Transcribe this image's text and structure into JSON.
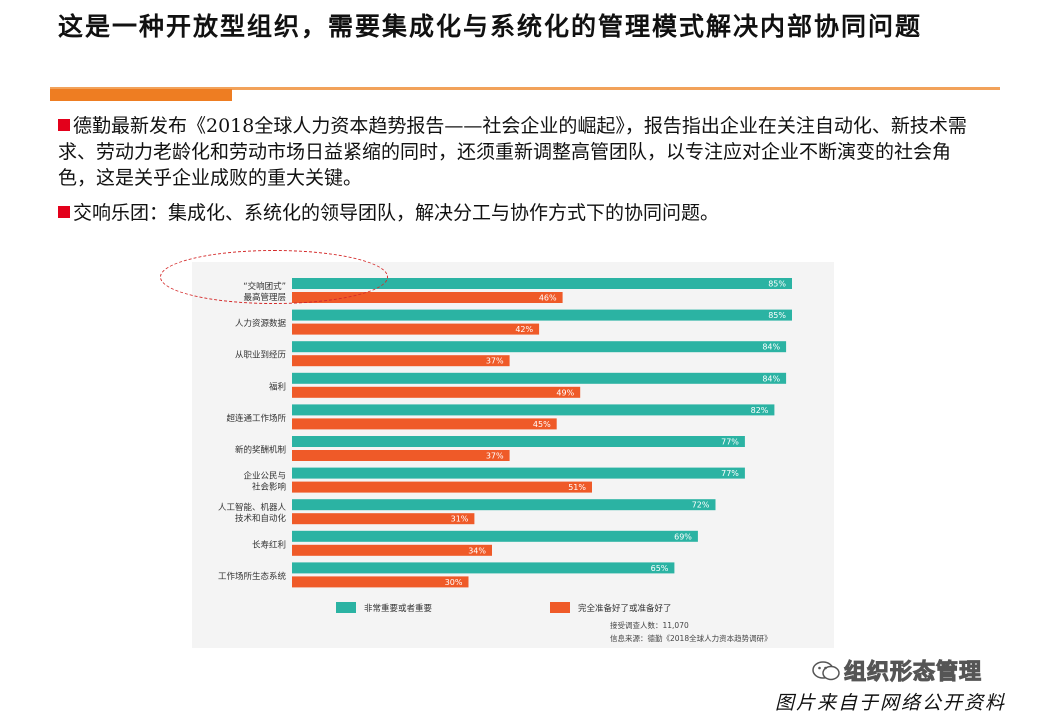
{
  "slide": {
    "title": "这是一种开放型组织，需要集成化与系统化的管理模式解决内部协同问题",
    "bullets": [
      "德勤最新发布《2018全球人力资本趋势报告——社会企业的崛起》，报告指出企业在关注自动化、新技术需求、劳动力老龄化和劳动市场日益紧缩的同时，还须重新调整高管团队，以专注应对企业不断演变的社会角色，这是关乎企业成败的重大关键。",
      "交响乐团：集成化、系统化的领导团队，解决分工与协作方式下的协同问题。"
    ],
    "brand": "组织形态管理",
    "footer": "图片来自于网络公开资料"
  },
  "colors": {
    "accent_orange": "#ee7d22",
    "bullet_red": "#e3001b",
    "series_teal": "#2bb3a3",
    "series_orange": "#ef5a28",
    "chart_bg": "#f4f4f4"
  },
  "chart_data": {
    "type": "bar",
    "orientation": "horizontal",
    "categories": [
      [
        "“交响团式”",
        "最高管理层"
      ],
      [
        "人力资源数据"
      ],
      [
        "从职业到经历"
      ],
      [
        "福利"
      ],
      [
        "超连通工作场所"
      ],
      [
        "新的奖酬机制"
      ],
      [
        "企业公民与",
        "社会影响"
      ],
      [
        "人工智能、机器人",
        "技术和自动化"
      ],
      [
        "长寿红利"
      ],
      [
        "工作场所生态系统"
      ]
    ],
    "series": [
      {
        "name": "非常重要或者重要",
        "color": "#2bb3a3",
        "values": [
          85,
          85,
          84,
          84,
          82,
          77,
          77,
          72,
          69,
          65
        ]
      },
      {
        "name": "完全准备好了或准备好了",
        "color": "#ef5a28",
        "values": [
          46,
          42,
          37,
          49,
          45,
          37,
          51,
          31,
          34,
          30
        ]
      }
    ],
    "value_suffix": "%",
    "xlim": [
      0,
      85
    ],
    "legend_position": "bottom",
    "notes": [
      "接受调查人数：11,070",
      "信息来源：德勤《2018全球人力资本趋势调研》"
    ]
  }
}
